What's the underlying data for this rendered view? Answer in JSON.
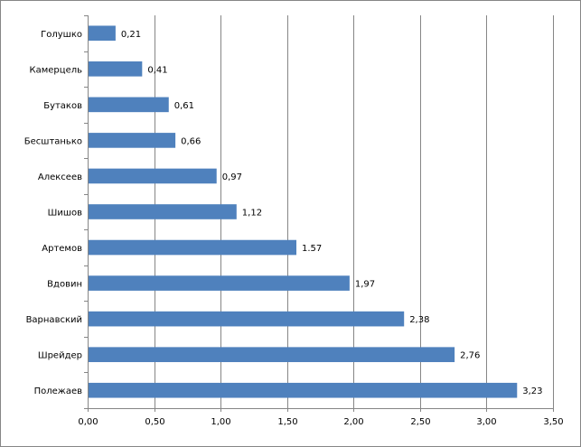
{
  "chart_data": {
    "type": "bar",
    "orientation": "horizontal",
    "categories": [
      "Полежаев",
      "Шрейдер",
      "Варнавский",
      "Вдовин",
      "Артемов",
      "Шишов",
      "Алексеев",
      "Бесштанько",
      "Бутаков",
      "Камерцель",
      "Голушко"
    ],
    "values": [
      3.23,
      2.76,
      2.38,
      1.97,
      1.57,
      1.12,
      0.97,
      0.66,
      0.61,
      0.41,
      0.21
    ],
    "data_labels": [
      "3,23",
      "2,76",
      "2,38",
      "1,97",
      "1.57",
      "1,12",
      "0,97",
      "0,66",
      "0,61",
      "0,41",
      "0,21"
    ],
    "title": "",
    "xlabel": "",
    "ylabel": "",
    "xlim": [
      0,
      3.5
    ],
    "x_ticks": [
      0,
      0.5,
      1.0,
      1.5,
      2.0,
      2.5,
      3.0,
      3.5
    ],
    "x_tick_labels": [
      "0,00",
      "0,50",
      "1,00",
      "1,50",
      "2,00",
      "2,50",
      "3,00",
      "3,50"
    ],
    "grid": "vertical",
    "legend": "none",
    "bar_color": "#4F81BD",
    "grid_color": "#868686"
  }
}
